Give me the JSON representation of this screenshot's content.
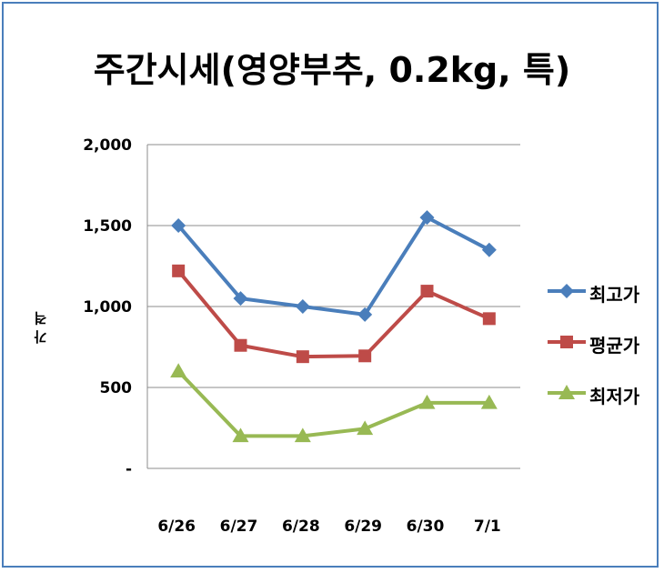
{
  "chart_data": {
    "type": "line",
    "title": "주간시세(영양부추, 0.2kg, 특)",
    "ylabel": "가 격",
    "categories": [
      "6/26",
      "6/27",
      "6/28",
      "6/29",
      "6/30",
      "7/1"
    ],
    "ylim": [
      0,
      2000
    ],
    "yticks": [
      {
        "value": 0,
        "label": "-"
      },
      {
        "value": 500,
        "label": "500"
      },
      {
        "value": 1000,
        "label": "1,000"
      },
      {
        "value": 1500,
        "label": "1,500"
      },
      {
        "value": 2000,
        "label": "2,000"
      }
    ],
    "grid": true,
    "legend_position": "right",
    "series": [
      {
        "name": "최고가",
        "color": "#4a7ebb",
        "marker": "diamond",
        "values": [
          1500,
          1050,
          1000,
          950,
          1550,
          1350
        ]
      },
      {
        "name": "평균가",
        "color": "#be4b48",
        "marker": "square",
        "values": [
          1220,
          760,
          690,
          695,
          1095,
          925
        ]
      },
      {
        "name": "최저가",
        "color": "#98b954",
        "marker": "triangle",
        "values": [
          600,
          200,
          200,
          245,
          405,
          405
        ]
      }
    ]
  }
}
